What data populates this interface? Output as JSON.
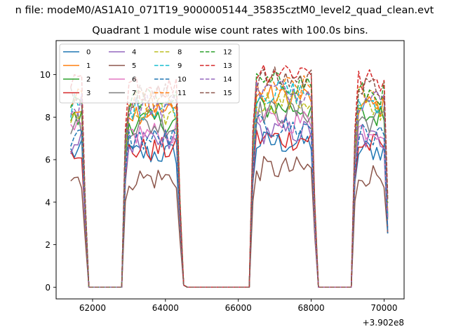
{
  "figure": {
    "suptitle": "n file: modeM0/AS1A10_071T19_9000005144_35835cztM0_level2_quad_clean.evt",
    "title": "Quadrant 1 module wise count rates with 100.0s bins."
  },
  "chart_data": {
    "type": "line",
    "title": "Quadrant 1 module wise count rates with 100.0s bins.",
    "xlabel": "",
    "ylabel": "",
    "x_offset_label": "+3.902e8",
    "x_offset": 390200000,
    "xlim": [
      61000,
      70550
    ],
    "ylim": [
      -0.55,
      11.6
    ],
    "xticks": [
      62000,
      64000,
      66000,
      68000,
      70000
    ],
    "xtick_labels": [
      "62000",
      "64000",
      "66000",
      "68000",
      "70000"
    ],
    "yticks": [
      0,
      2,
      4,
      6,
      8,
      10
    ],
    "ytick_labels": [
      "0",
      "2",
      "4",
      "6",
      "8",
      "10"
    ],
    "grid": false,
    "legend_position": "upper-left",
    "legend_columns": 4,
    "segments": [
      {
        "start": 61400,
        "end": 61800
      },
      {
        "start": 62900,
        "end": 64400
      },
      {
        "start": 66400,
        "end": 68100
      },
      {
        "start": 69200,
        "end": 70100
      }
    ],
    "series": [
      {
        "name": "0",
        "color": "#1f77b4",
        "dashed": false,
        "level": 6.6
      },
      {
        "name": "1",
        "color": "#ff7f0e",
        "dashed": false,
        "level": 8.7
      },
      {
        "name": "2",
        "color": "#2ca02c",
        "dashed": false,
        "level": 8.2
      },
      {
        "name": "3",
        "color": "#d62728",
        "dashed": false,
        "level": 6.8
      },
      {
        "name": "4",
        "color": "#9467bd",
        "dashed": false,
        "level": 7.1
      },
      {
        "name": "5",
        "color": "#8c564b",
        "dashed": false,
        "level": 5.4
      },
      {
        "name": "6",
        "color": "#e377c2",
        "dashed": false,
        "level": 7.6
      },
      {
        "name": "7",
        "color": "#7f7f7f",
        "dashed": false,
        "level": 8.0
      },
      {
        "name": "8",
        "color": "#bcbd22",
        "dashed": true,
        "level": 8.5
      },
      {
        "name": "9",
        "color": "#17becf",
        "dashed": true,
        "level": 8.9
      },
      {
        "name": "10",
        "color": "#1f77b4",
        "dashed": true,
        "level": 7.3
      },
      {
        "name": "11",
        "color": "#ff7f0e",
        "dashed": true,
        "level": 9.1
      },
      {
        "name": "12",
        "color": "#2ca02c",
        "dashed": true,
        "level": 9.3
      },
      {
        "name": "13",
        "color": "#d62728",
        "dashed": true,
        "level": 9.9
      },
      {
        "name": "14",
        "color": "#9467bd",
        "dashed": true,
        "level": 9.0
      },
      {
        "name": "15",
        "color": "#8c564b",
        "dashed": true,
        "level": 9.5
      }
    ]
  }
}
